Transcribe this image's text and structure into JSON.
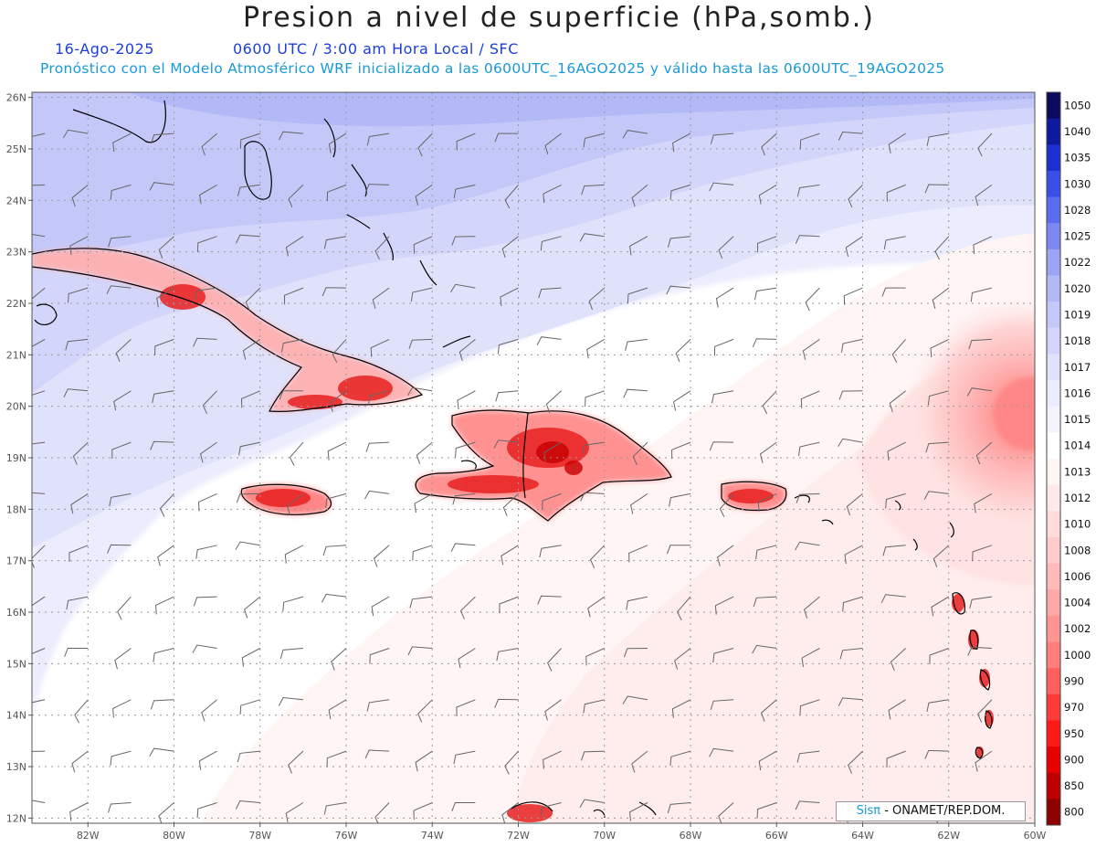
{
  "header": {
    "title": "Presion a nivel de superficie (hPa,somb.)",
    "date": "16-Ago-2025",
    "time_info": "0600 UTC / 3:00 am Hora Local / SFC",
    "model_info": "Pronóstico con el Modelo Atmosférico WRF inicializado a las 0600UTC_16AGO2025 y válido hasta las  0600UTC_19AGO2025"
  },
  "credit": {
    "brand": "Sisπ",
    "agency": "- ONAMET/REP.DOM."
  },
  "map": {
    "lon_range": [
      -83.3,
      -60
    ],
    "lat_range": [
      11.9,
      26.1
    ],
    "lon_ticks": [
      "82W",
      "80W",
      "78W",
      "76W",
      "74W",
      "72W",
      "70W",
      "68W",
      "66W",
      "64W",
      "62W",
      "60W"
    ],
    "lat_ticks": [
      "12N",
      "13N",
      "14N",
      "15N",
      "16N",
      "17N",
      "18N",
      "19N",
      "20N",
      "21N",
      "22N",
      "23N",
      "24N",
      "25N",
      "26N"
    ],
    "low_center": {
      "lon": -60.4,
      "lat": 19.8
    }
  },
  "colorbar": {
    "labels": [
      "1050",
      "1040",
      "1035",
      "1030",
      "1028",
      "1025",
      "1022",
      "1020",
      "1019",
      "1018",
      "1017",
      "1016",
      "1015",
      "1014",
      "1013",
      "1012",
      "1010",
      "1008",
      "1006",
      "1004",
      "1002",
      "1000",
      "990",
      "970",
      "950",
      "900",
      "850",
      "800"
    ],
    "colors": [
      "#0b0a5e",
      "#0e1a9e",
      "#1e2fd2",
      "#3b4fe8",
      "#5c6cf0",
      "#7b88f2",
      "#9ba4f5",
      "#b3b9f7",
      "#c4c8f8",
      "#d3d6fa",
      "#e0e2fb",
      "#ebecfd",
      "#f4f4ff",
      "#ffffff",
      "#fff5f5",
      "#ffe9e9",
      "#ffdcdc",
      "#ffcccc",
      "#ffbaba",
      "#ffa8a8",
      "#ff9494",
      "#ff7f7f",
      "#ff5f5f",
      "#ff3a3a",
      "#ff1a1a",
      "#e80000",
      "#c00000",
      "#8c0000"
    ]
  }
}
